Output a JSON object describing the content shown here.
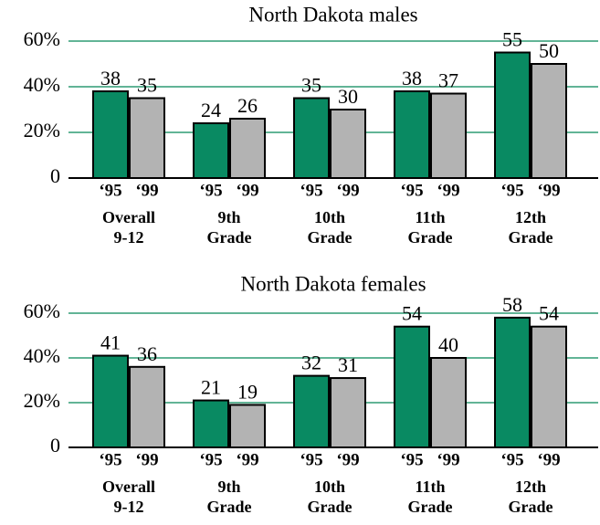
{
  "chart_data": [
    {
      "type": "bar",
      "title": "North Dakota males",
      "categories": [
        "Overall 9-12",
        "9th Grade",
        "10th Grade",
        "11th Grade",
        "12th Grade"
      ],
      "series": [
        {
          "name": "‘95",
          "color": "#098a62",
          "values": [
            38,
            24,
            35,
            38,
            55
          ]
        },
        {
          "name": "‘99",
          "color": "#b3b3b3",
          "values": [
            35,
            26,
            30,
            37,
            50
          ]
        }
      ],
      "ylim": [
        0,
        60
      ],
      "yticks": [
        0,
        {
          "value": 20,
          "label": "20%"
        },
        {
          "value": 40,
          "label": "40%"
        },
        {
          "value": 60,
          "label": "60%"
        }
      ],
      "grid": true
    },
    {
      "type": "bar",
      "title": "North Dakota females",
      "categories": [
        "Overall 9-12",
        "9th Grade",
        "10th Grade",
        "11th Grade",
        "12th Grade"
      ],
      "series": [
        {
          "name": "‘95",
          "color": "#098a62",
          "values": [
            41,
            21,
            32,
            54,
            58
          ]
        },
        {
          "name": "‘99",
          "color": "#b3b3b3",
          "values": [
            36,
            19,
            31,
            40,
            54
          ]
        }
      ],
      "ylim": [
        0,
        60
      ],
      "yticks": [
        0,
        {
          "value": 20,
          "label": "20%"
        },
        {
          "value": 40,
          "label": "40%"
        },
        {
          "value": 60,
          "label": "60%"
        }
      ],
      "grid": true
    }
  ]
}
